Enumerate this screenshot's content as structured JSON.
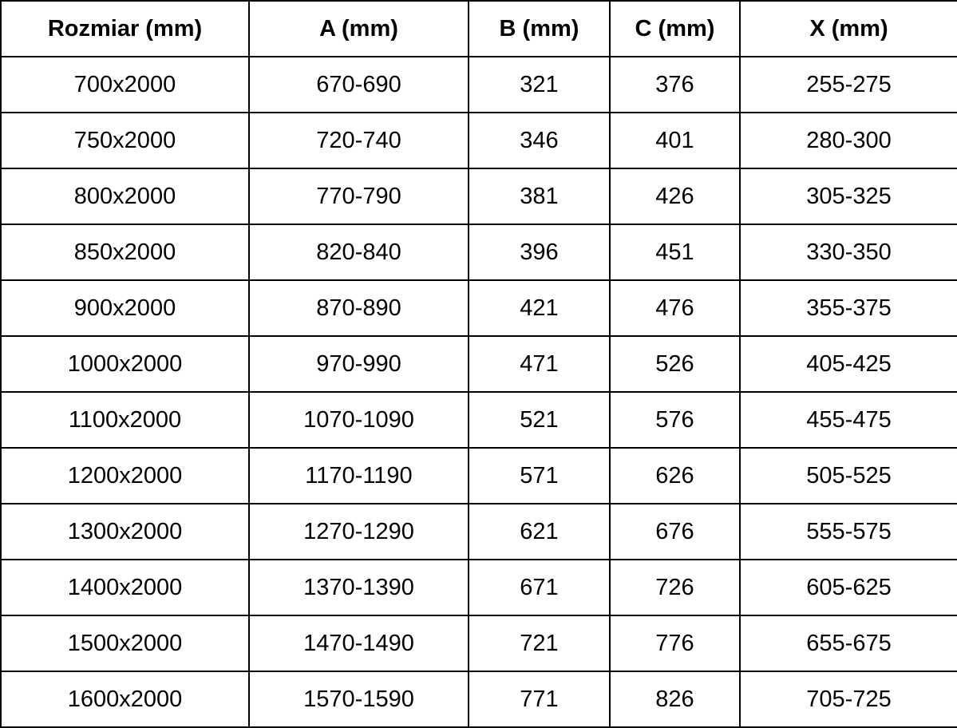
{
  "table": {
    "columns": [
      "Rozmiar (mm)",
      "A (mm)",
      "B (mm)",
      "C (mm)",
      "X (mm)"
    ],
    "rows": [
      [
        "700x2000",
        "670-690",
        "321",
        "376",
        "255-275"
      ],
      [
        "750x2000",
        "720-740",
        "346",
        "401",
        "280-300"
      ],
      [
        "800x2000",
        "770-790",
        "381",
        "426",
        "305-325"
      ],
      [
        "850x2000",
        "820-840",
        "396",
        "451",
        "330-350"
      ],
      [
        "900x2000",
        "870-890",
        "421",
        "476",
        "355-375"
      ],
      [
        "1000x2000",
        "970-990",
        "471",
        "526",
        "405-425"
      ],
      [
        "1100x2000",
        "1070-1090",
        "521",
        "576",
        "455-475"
      ],
      [
        "1200x2000",
        "1170-1190",
        "571",
        "626",
        "505-525"
      ],
      [
        "1300x2000",
        "1270-1290",
        "621",
        "676",
        "555-575"
      ],
      [
        "1400x2000",
        "1370-1390",
        "671",
        "726",
        "605-625"
      ],
      [
        "1500x2000",
        "1470-1490",
        "721",
        "776",
        "655-675"
      ],
      [
        "1600x2000",
        "1570-1590",
        "771",
        "826",
        "705-725"
      ]
    ]
  },
  "colors": {
    "border": "#000000",
    "text": "#000000",
    "background": "#ffffff"
  }
}
